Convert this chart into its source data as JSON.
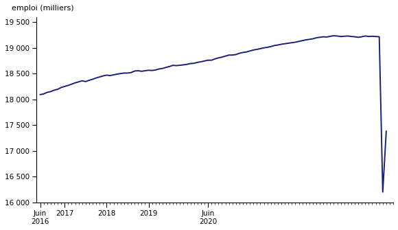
{
  "ylabel": "emploi (milliers)",
  "line_color": "#1a1f7a",
  "line_width": 1.4,
  "background_color": "#ffffff",
  "ylim": [
    16000,
    19600
  ],
  "yticks": [
    16000,
    16500,
    17000,
    17500,
    18000,
    18500,
    19000,
    19500
  ],
  "ytick_labels": [
    "16 000",
    "16 500",
    "17 000",
    "17 500",
    "18 000",
    "18 500",
    "19 000",
    "19 500"
  ],
  "monthly_values": [
    18092,
    18105,
    18136,
    18150,
    18178,
    18195,
    18230,
    18251,
    18270,
    18295,
    18320,
    18340,
    18360,
    18345,
    18370,
    18390,
    18415,
    18435,
    18455,
    18470,
    18462,
    18475,
    18490,
    18500,
    18510,
    18510,
    18520,
    18550,
    18555,
    18545,
    18555,
    18565,
    18560,
    18570,
    18590,
    18600,
    18620,
    18638,
    18660,
    18655,
    18662,
    18670,
    18680,
    18695,
    18700,
    18718,
    18730,
    18745,
    18760,
    18760,
    18785,
    18805,
    18820,
    18840,
    18860,
    18860,
    18870,
    18895,
    18910,
    18920,
    18940,
    18958,
    18970,
    18985,
    19000,
    19010,
    19025,
    19045,
    19055,
    19070,
    19080,
    19090,
    19100,
    19110,
    19125,
    19140,
    19155,
    19165,
    19175,
    19195,
    19205,
    19215,
    19210,
    19225,
    19235,
    19230,
    19220,
    19225,
    19230,
    19220,
    19215,
    19205,
    19215,
    19230,
    19220,
    19225,
    19220,
    19215,
    16200,
    17380
  ],
  "xlim_start": 2016.333,
  "xlim_end": 2020.583,
  "xtick_major_positions": [
    2016.417,
    2017.0,
    2018.0,
    2019.0,
    2020.417
  ],
  "xtick_major_labels": [
    "Juin\n2016",
    "2017",
    "2018",
    "2019",
    "Juin\n2020"
  ]
}
